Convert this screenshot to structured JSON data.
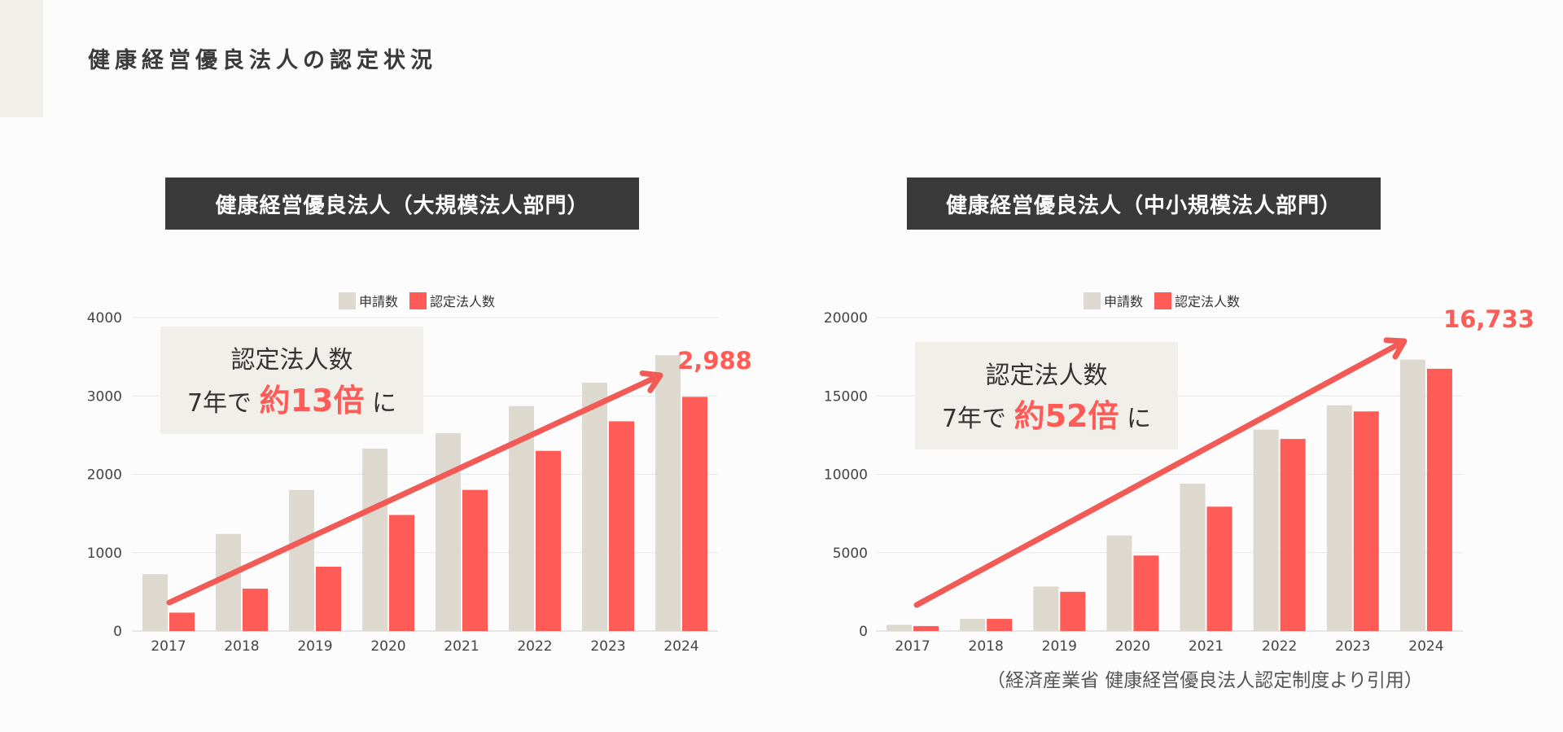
{
  "page": {
    "title": "健康経営優良法人の認定状況",
    "source_note": "（経済産業省 健康経営優良法人認定制度より引用）"
  },
  "colors": {
    "applications": "#ded9ce",
    "certified": "#ff5b57",
    "arrow": "#f25a56",
    "callout_bg": "#f1efea",
    "title_bg": "#3a3a3a",
    "grid": "#e7e7e7"
  },
  "chart_data": [
    {
      "type": "bar",
      "panel_title": "健康経営優良法人（大規模法人部門）",
      "categories": [
        "2017",
        "2018",
        "2019",
        "2020",
        "2021",
        "2022",
        "2023",
        "2024"
      ],
      "series": [
        {
          "name": "申請数",
          "values": [
            726,
            1239,
            1800,
            2328,
            2523,
            2869,
            3169,
            3520
          ]
        },
        {
          "name": "認定法人数",
          "values": [
            235,
            541,
            821,
            1481,
            1801,
            2299,
            2676,
            2988
          ]
        }
      ],
      "ylim": [
        0,
        4000
      ],
      "yticks": [
        0,
        1000,
        2000,
        3000,
        4000
      ],
      "legend_position": "top-center",
      "grid": true,
      "value_label": "2,988",
      "callout": {
        "line1": "認定法人数",
        "line2_prefix": "7年で",
        "highlight": "約13倍",
        "suffix": "に"
      }
    },
    {
      "type": "bar",
      "panel_title": "健康経営優良法人（中小規模法人部門）",
      "categories": [
        "2017",
        "2018",
        "2019",
        "2020",
        "2021",
        "2022",
        "2023",
        "2024"
      ],
      "series": [
        {
          "name": "申請数",
          "values": [
            397,
            776,
            2834,
            6095,
            9403,
            12849,
            14402,
            17316
          ]
        },
        {
          "name": "認定法人数",
          "values": [
            318,
            776,
            2503,
            4816,
            7934,
            12255,
            14012,
            16733
          ]
        }
      ],
      "ylim": [
        0,
        20000
      ],
      "yticks": [
        0,
        5000,
        10000,
        15000,
        20000
      ],
      "legend_position": "top-center",
      "grid": true,
      "value_label": "16,733",
      "callout": {
        "line1": "認定法人数",
        "line2_prefix": "7年で",
        "highlight": "約52倍",
        "suffix": "に"
      }
    }
  ]
}
